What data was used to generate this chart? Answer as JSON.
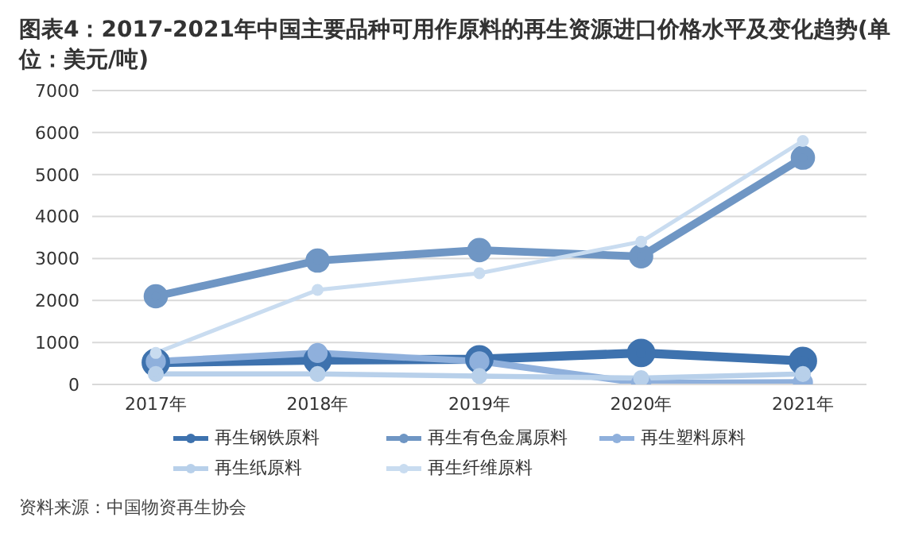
{
  "chart_data": {
    "type": "line",
    "title": "图表4：2017-2021年中国主要品种可用作原料的再生资源进口价格水平及变化趋势(单位：美元/吨)",
    "categories": [
      "2017年",
      "2018年",
      "2019年",
      "2020年",
      "2021年"
    ],
    "series": [
      {
        "name": "再生钢铁原料",
        "color": "#3e72ae",
        "values": [
          520,
          580,
          600,
          750,
          560
        ]
      },
      {
        "name": "再生有色金属原料",
        "color": "#6f96c4",
        "values": [
          2100,
          2950,
          3200,
          3050,
          5400
        ]
      },
      {
        "name": "再生塑料原料",
        "color": "#8fb0dc",
        "values": [
          550,
          750,
          550,
          30,
          50
        ]
      },
      {
        "name": "再生纸原料",
        "color": "#b8d0ea",
        "values": [
          250,
          250,
          200,
          150,
          250
        ]
      },
      {
        "name": "再生纤维原料",
        "color": "#c9dcf0",
        "values": [
          750,
          2250,
          2650,
          3400,
          5800
        ]
      }
    ],
    "ylim": [
      0,
      7000
    ],
    "yticks": [
      0,
      1000,
      2000,
      3000,
      4000,
      5000,
      6000,
      7000
    ],
    "grid": "y",
    "legend": "bottom",
    "marker": "circle",
    "line_style": "solid",
    "annotations": [
      "资料来源：中国物资再生协会"
    ]
  }
}
